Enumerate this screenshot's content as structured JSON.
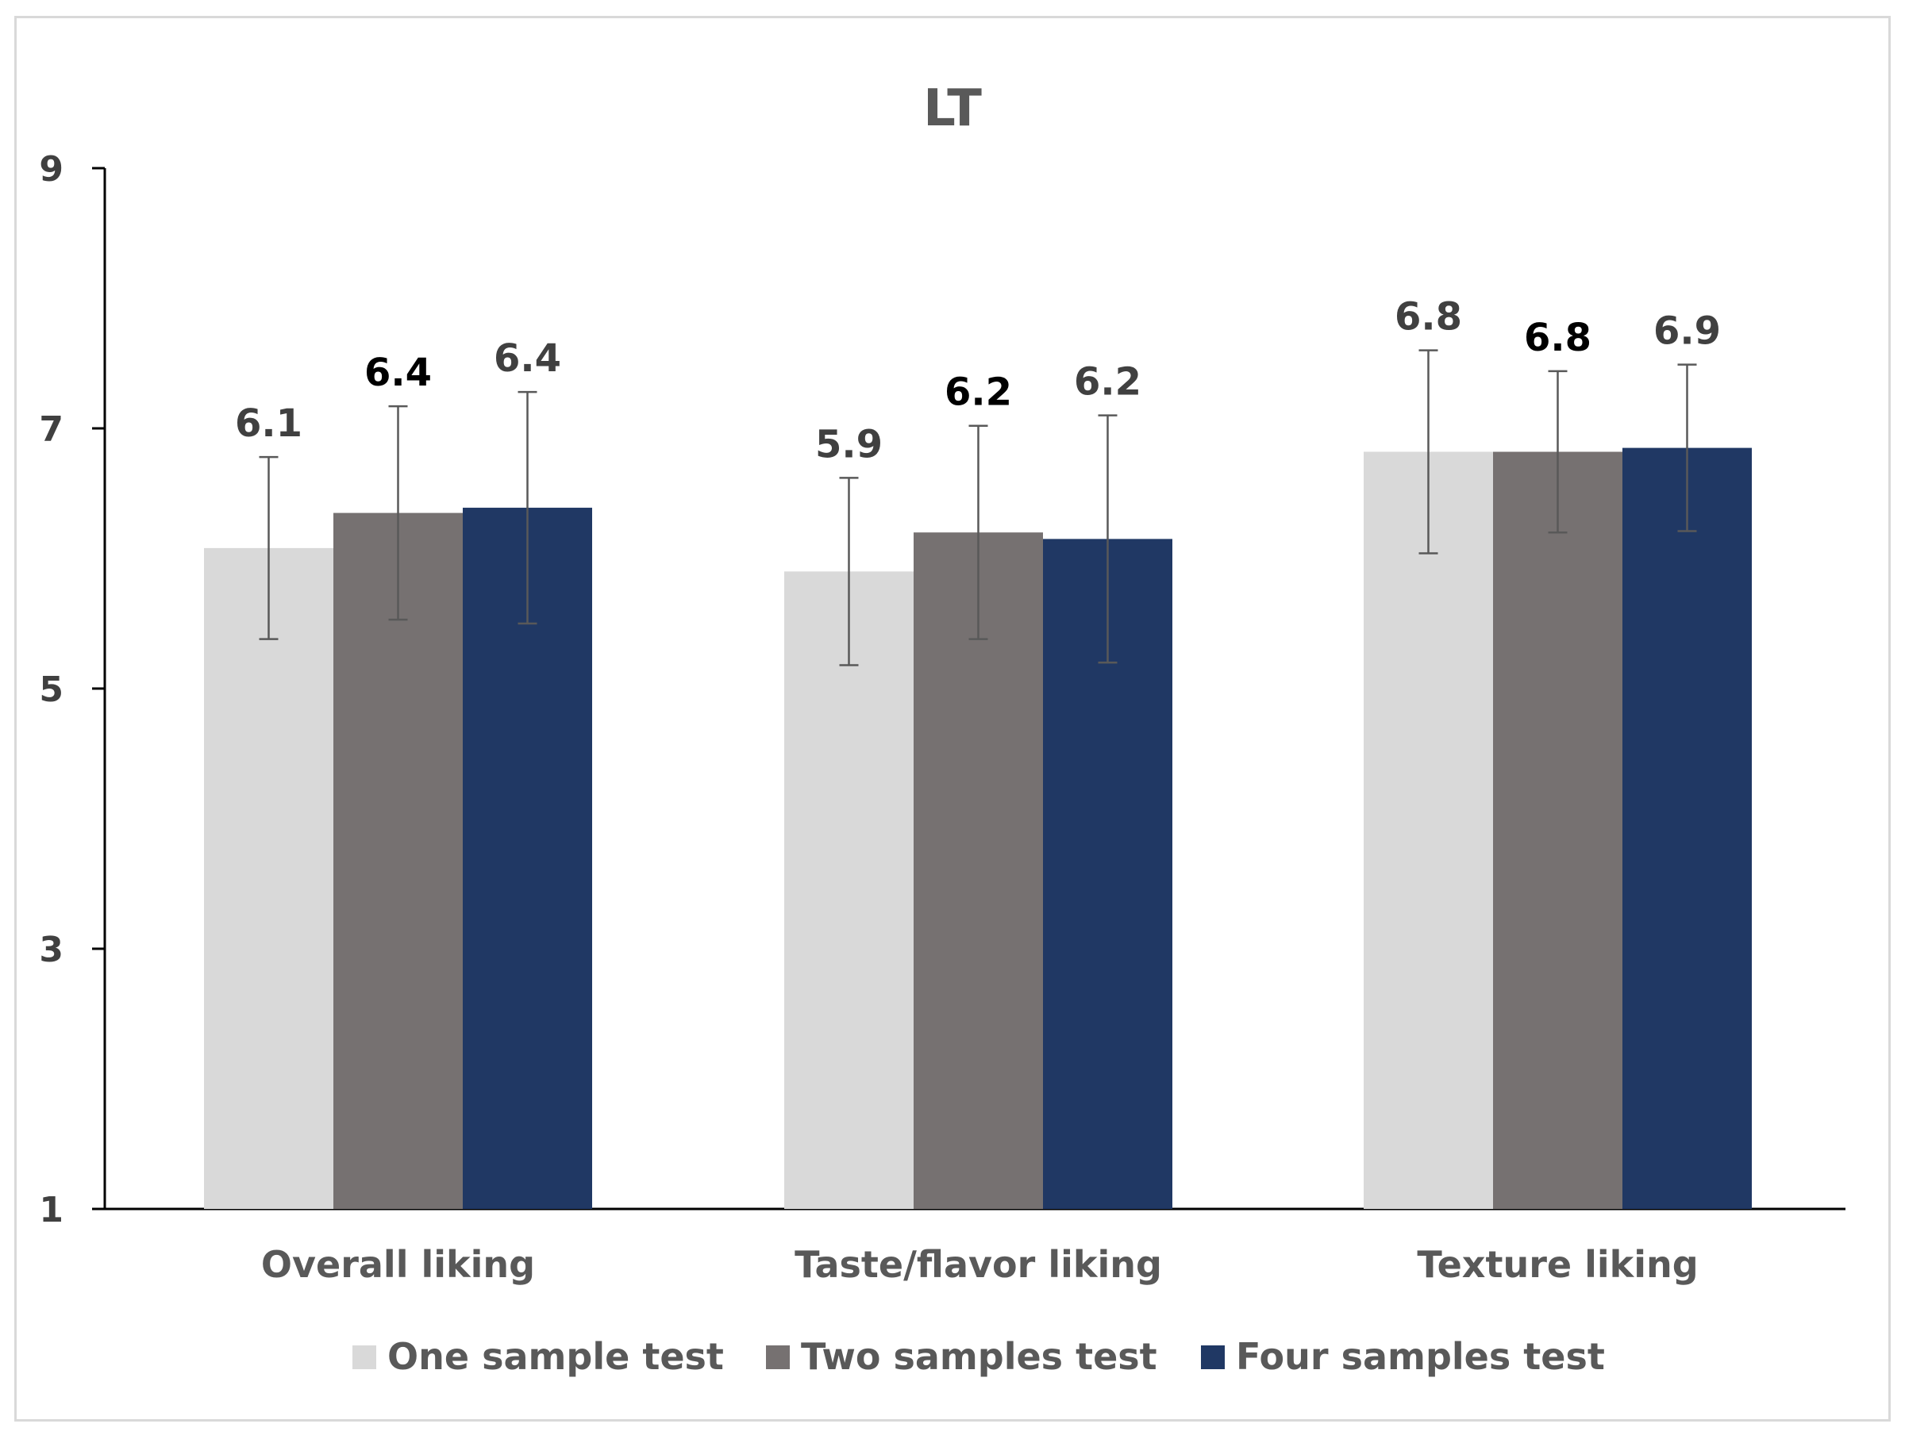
{
  "chart_data": {
    "type": "bar",
    "title": "LT",
    "xlabel": "",
    "ylabel": "",
    "ylim": [
      1,
      9
    ],
    "yticks": [
      "1",
      "3",
      "5",
      "7",
      "9"
    ],
    "categories": [
      "Overall liking",
      "Taste/flavor liking",
      "Texture liking"
    ],
    "series": [
      {
        "name": "One sample test",
        "color": "#d9d9d9",
        "values": [
          6.08,
          5.9,
          6.82
        ],
        "labels": [
          "6.1",
          "5.9",
          "6.8"
        ],
        "error": [
          0.7,
          0.72,
          0.78
        ],
        "label_color": "#404040"
      },
      {
        "name": "Two samples test",
        "color": "#767171",
        "values": [
          6.35,
          6.2,
          6.82
        ],
        "labels": [
          "6.4",
          "6.2",
          "6.8"
        ],
        "error": [
          0.82,
          0.82,
          0.62
        ],
        "label_color": "#000000"
      },
      {
        "name": "Four samples test",
        "color": "#203864",
        "values": [
          6.39,
          6.15,
          6.85
        ],
        "labels": [
          "6.4",
          "6.2",
          "6.9"
        ],
        "error": [
          0.89,
          0.95,
          0.64
        ],
        "label_color": "#404040"
      }
    ],
    "legend": "bottom"
  }
}
